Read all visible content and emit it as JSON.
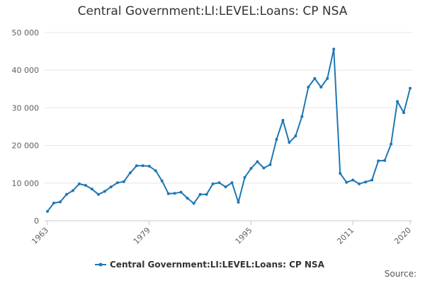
{
  "chart_data": {
    "type": "line",
    "title": "Central Government:LI:LEVEL:Loans: CP NSA",
    "xlabel": "",
    "ylabel": "",
    "x_tick_labels": [
      "1963",
      "1979",
      "1995",
      "2011",
      "2020"
    ],
    "x_ticks": [
      1963,
      1979,
      1995,
      2011,
      2020
    ],
    "y_tick_labels": [
      "0",
      "10 000",
      "20 000",
      "30 000",
      "40 000",
      "50 000"
    ],
    "y_ticks": [
      0,
      10000,
      20000,
      30000,
      40000,
      50000
    ],
    "xlim": [
      1963,
      2020
    ],
    "ylim": [
      0,
      50000
    ],
    "grid": "horizontal",
    "legend_position": "bottom",
    "series": [
      {
        "name": "Central Government:LI:LEVEL:Loans: CP NSA",
        "color": "#1f77b4",
        "x": [
          1963,
          1964,
          1965,
          1966,
          1967,
          1968,
          1969,
          1970,
          1971,
          1972,
          1973,
          1974,
          1975,
          1976,
          1977,
          1978,
          1979,
          1980,
          1981,
          1982,
          1983,
          1984,
          1985,
          1986,
          1987,
          1988,
          1989,
          1990,
          1991,
          1992,
          1993,
          1994,
          1995,
          1996,
          1997,
          1998,
          1999,
          2000,
          2001,
          2002,
          2003,
          2004,
          2005,
          2006,
          2007,
          2008,
          2009,
          2010,
          2011,
          2012,
          2013,
          2014,
          2015,
          2016,
          2017,
          2018,
          2019,
          2020
        ],
        "values": [
          2500,
          4700,
          5000,
          7000,
          8000,
          9800,
          9400,
          8400,
          7000,
          7800,
          9000,
          10100,
          10400,
          12700,
          14600,
          14600,
          14500,
          13300,
          10600,
          7200,
          7300,
          7600,
          6000,
          4600,
          7000,
          7000,
          9800,
          10100,
          9000,
          10100,
          4900,
          11500,
          13900,
          15700,
          14000,
          14900,
          21600,
          26700,
          20800,
          22500,
          27700,
          35500,
          37800,
          35500,
          37800,
          45600,
          12600,
          10200,
          10800,
          9800,
          10300,
          10800,
          15900,
          16000,
          20400,
          31700,
          28700,
          35200
        ]
      }
    ],
    "source_label": "Source:"
  }
}
